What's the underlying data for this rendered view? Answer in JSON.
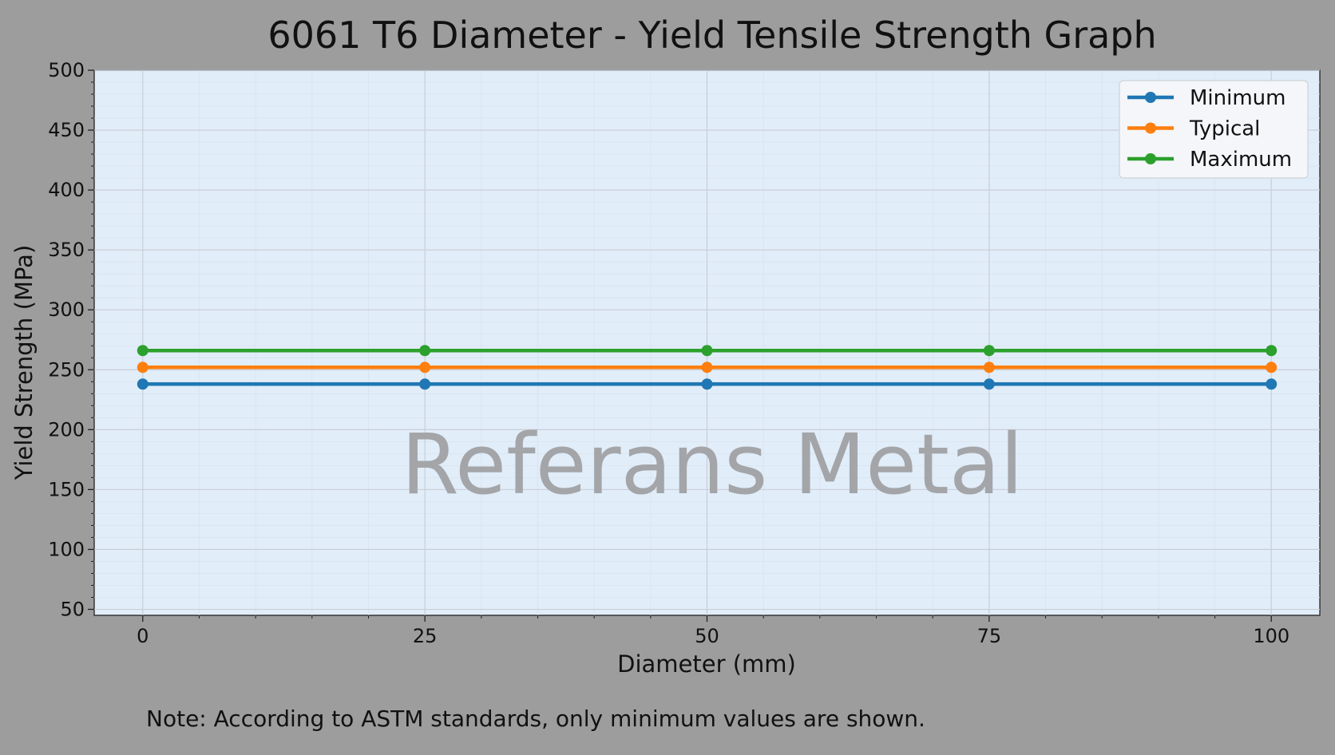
{
  "chart_data": {
    "type": "line",
    "title": "6061 T6 Diameter  - Yield Tensile Strength Graph",
    "xlabel": "Diameter (mm)",
    "ylabel": "Yield Strength (MPa)",
    "x": [
      0,
      25,
      50,
      75,
      100
    ],
    "xlim": [
      -4.3,
      104.3
    ],
    "ylim": [
      45,
      500
    ],
    "xticks": [
      0,
      25,
      50,
      75,
      100
    ],
    "yticks": [
      50,
      100,
      150,
      200,
      250,
      300,
      350,
      400,
      450,
      500
    ],
    "grid": true,
    "legend_position": "top-right",
    "series": [
      {
        "name": "Minimum",
        "color": "#1f77b4",
        "values": [
          238,
          238,
          238,
          238,
          238
        ]
      },
      {
        "name": "Typical",
        "color": "#ff7f0e",
        "values": [
          252,
          252,
          252,
          252,
          252
        ]
      },
      {
        "name": "Maximum",
        "color": "#2ca02c",
        "values": [
          266,
          266,
          266,
          266,
          266
        ]
      }
    ],
    "watermark": "Referans Metal",
    "note": "Note: According to ASTM standards, only minimum values are shown.",
    "colors": {
      "page_background": "#9d9d9d",
      "plot_background": "#e1edf9",
      "grid_major": "#c7ccd3",
      "grid_minor": "#d9e3ee",
      "watermark": "#a3a5a8"
    }
  }
}
